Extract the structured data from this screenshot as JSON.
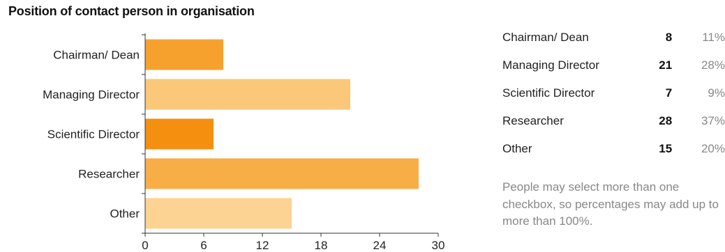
{
  "title": "Position of contact person in organisation",
  "chart_data": {
    "type": "bar",
    "orientation": "horizontal",
    "categories": [
      "Chairman/ Dean",
      "Managing Director",
      "Scientific Director",
      "Researcher",
      "Other"
    ],
    "values": [
      8,
      21,
      7,
      28,
      15
    ],
    "bar_colors": [
      "#f6a12e",
      "#fbc87a",
      "#f48f10",
      "#f7ae47",
      "#fcd392"
    ],
    "xlim": [
      0,
      30
    ],
    "xticks": [
      "0",
      "6",
      "12",
      "18",
      "24",
      "30"
    ],
    "grid": false
  },
  "summary": {
    "rows": [
      {
        "label": "Chairman/ Dean",
        "count": "8",
        "percent": "11%"
      },
      {
        "label": "Managing Director",
        "count": "21",
        "percent": "28%"
      },
      {
        "label": "Scientific Director",
        "count": "7",
        "percent": "9%"
      },
      {
        "label": "Researcher",
        "count": "28",
        "percent": "37%"
      },
      {
        "label": "Other",
        "count": "15",
        "percent": "20%"
      }
    ],
    "note": "People may select more than one checkbox, so percentages may add up to more than 100%."
  },
  "colors": {
    "axis": "#333333",
    "text": "#222222",
    "muted": "#888888"
  }
}
